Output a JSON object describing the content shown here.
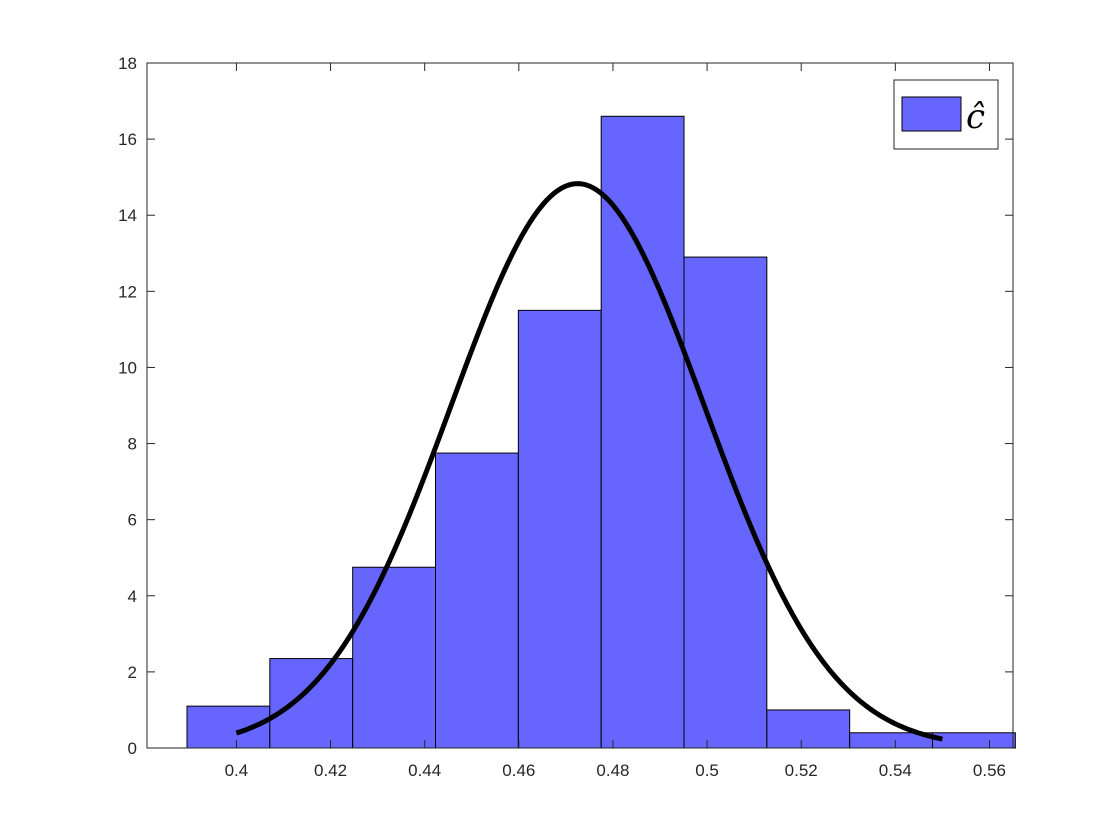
{
  "chart_data": {
    "type": "bar",
    "title": "",
    "xlabel": "",
    "ylabel": "",
    "xlim": [
      0.381,
      0.565
    ],
    "ylim": [
      0,
      18
    ],
    "x_ticks": [
      0.4,
      0.42,
      0.44,
      0.46,
      0.48,
      0.5,
      0.52,
      0.54,
      0.56
    ],
    "x_tick_labels": [
      "0.4",
      "0.42",
      "0.44",
      "0.46",
      "0.48",
      "0.5",
      "0.52",
      "0.54",
      "0.56"
    ],
    "y_ticks": [
      0,
      2,
      4,
      6,
      8,
      10,
      12,
      14,
      16,
      18
    ],
    "y_tick_labels": [
      "0",
      "2",
      "4",
      "6",
      "8",
      "10",
      "12",
      "14",
      "16",
      "18"
    ],
    "bin_edges": [
      0.3895,
      0.4071,
      0.4247,
      0.4423,
      0.4599,
      0.4775,
      0.4951,
      0.5127,
      0.5303,
      0.5479,
      0.5655
    ],
    "values": [
      1.1,
      2.35,
      4.75,
      7.75,
      11.5,
      16.6,
      12.9,
      1.0,
      0.4,
      0.4
    ],
    "bar_color": "#6666ff",
    "bar_edge_color": "#000000",
    "fit_curve": {
      "type": "normal_pdf",
      "mean": 0.4725,
      "std": 0.0269,
      "x_range": [
        0.4,
        0.55
      ],
      "color": "#000000"
    },
    "legend": {
      "position": "top-right",
      "entries": [
        {
          "label": "ĉ",
          "color": "#6666ff"
        }
      ]
    },
    "grid": false
  }
}
